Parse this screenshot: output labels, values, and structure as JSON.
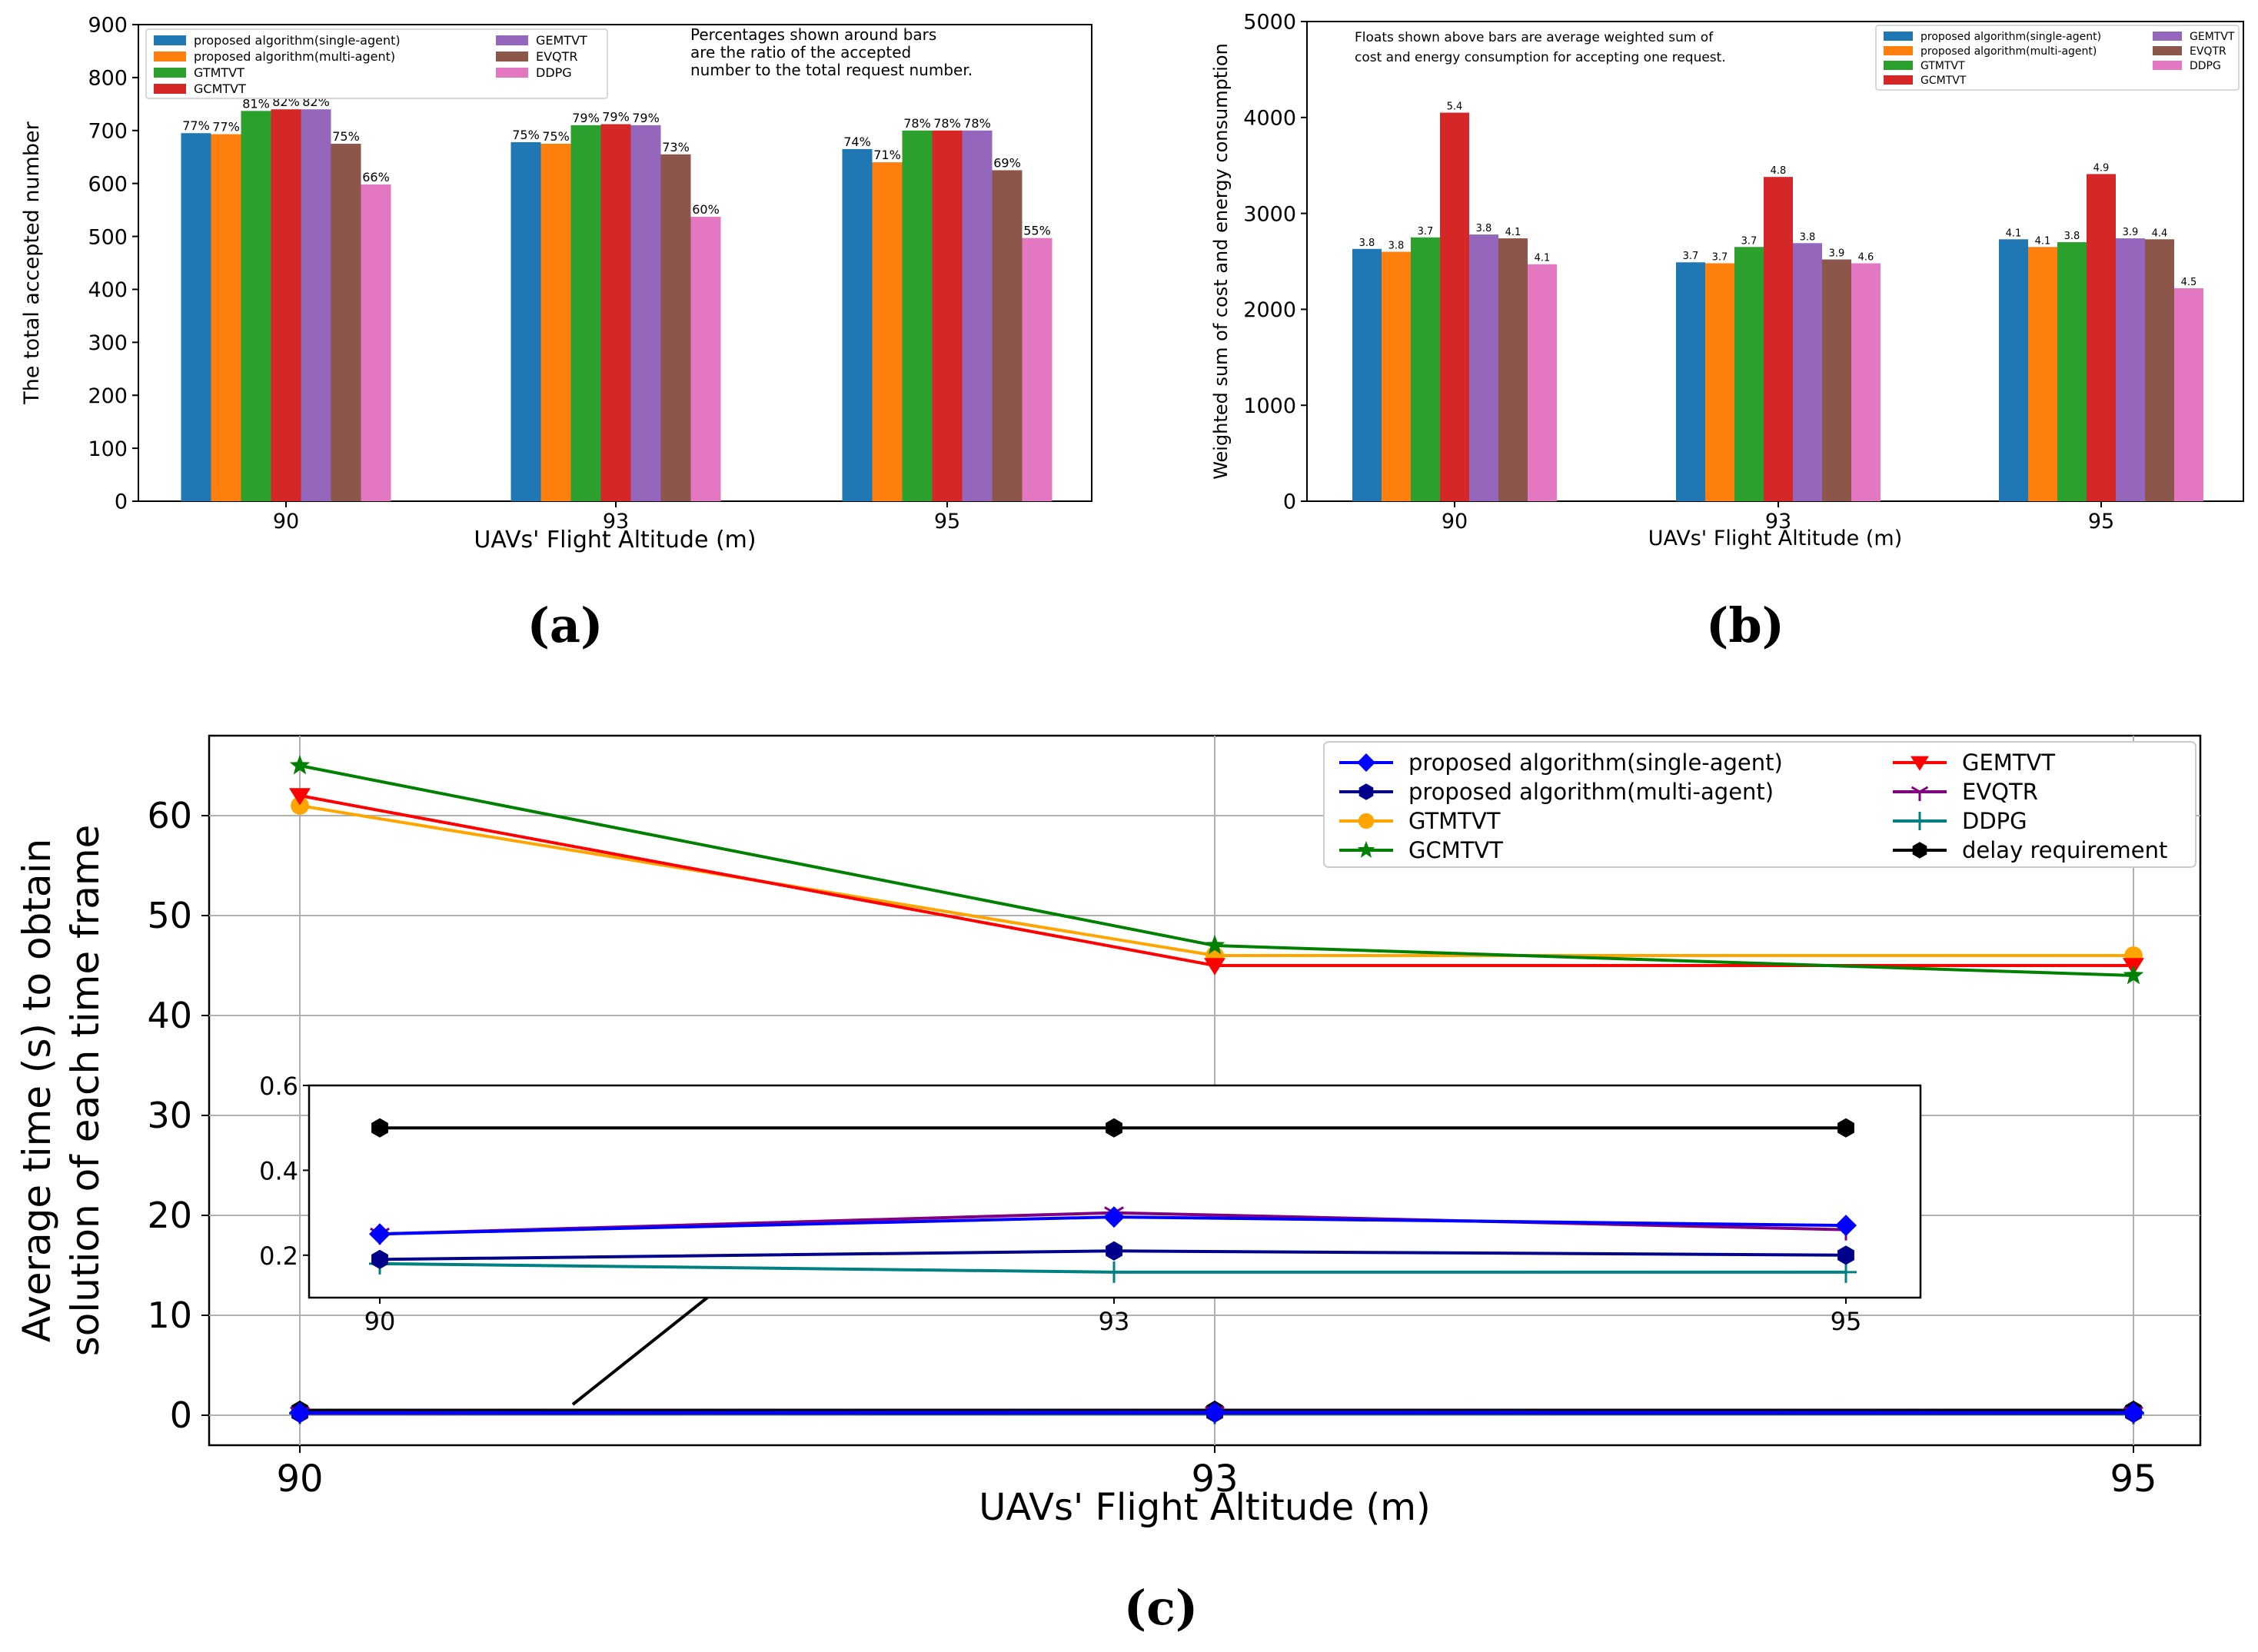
{
  "captions": {
    "a": "(a)",
    "b": "(b)",
    "c": "(c)"
  },
  "colors": {
    "proposed algorithm(single-agent)": "#1f77b4",
    "proposed algorithm(multi-agent)": "#ff7f0e",
    "GTMTVT": "#2ca02c",
    "GCMTVT": "#d62728",
    "GEMTVT": "#9467bd",
    "EVQTR": "#8c564b",
    "DDPG": "#e377c2"
  },
  "chart_data": [
    {
      "id": "a",
      "type": "bar",
      "categories": [
        "90",
        "93",
        "95"
      ],
      "xlabel": "UAVs' Flight Altitude (m)",
      "ylabel": "The total accepted number",
      "ylim": [
        0,
        900
      ],
      "yticks": [
        0,
        100,
        200,
        300,
        400,
        500,
        600,
        700,
        800,
        900
      ],
      "note": [
        "Percentages shown around bars",
        "are the ratio of the accepted",
        "number to the total request number."
      ],
      "legend_position": "upper-left",
      "series": [
        {
          "name": "proposed algorithm(single-agent)",
          "values": [
            695,
            678,
            665
          ],
          "labels": [
            "77%",
            "75%",
            "74%"
          ]
        },
        {
          "name": "proposed algorithm(multi-agent)",
          "values": [
            693,
            675,
            640
          ],
          "labels": [
            "77%",
            "75%",
            "71%"
          ]
        },
        {
          "name": "GTMTVT",
          "values": [
            737,
            710,
            700
          ],
          "labels": [
            "81%",
            "79%",
            "78%"
          ]
        },
        {
          "name": "GCMTVT",
          "values": [
            740,
            712,
            700
          ],
          "labels": [
            "82%",
            "79%",
            "78%"
          ]
        },
        {
          "name": "GEMTVT",
          "values": [
            740,
            710,
            700
          ],
          "labels": [
            "82%",
            "79%",
            "78%"
          ]
        },
        {
          "name": "EVQTR",
          "values": [
            675,
            655,
            625
          ],
          "labels": [
            "75%",
            "73%",
            "69%"
          ]
        },
        {
          "name": "DDPG",
          "values": [
            598,
            537,
            497
          ],
          "labels": [
            "66%",
            "60%",
            "55%"
          ]
        }
      ]
    },
    {
      "id": "b",
      "type": "bar",
      "categories": [
        "90",
        "93",
        "95"
      ],
      "xlabel": "UAVs' Flight Altitude (m)",
      "ylabel": "Weighted sum of cost and energy consumption",
      "ylim": [
        0,
        5000
      ],
      "yticks": [
        0,
        1000,
        2000,
        3000,
        4000,
        5000
      ],
      "note": [
        "Floats shown above bars are average weighted sum of",
        "cost and energy consumption for accepting one request."
      ],
      "legend_position": "upper-right",
      "series": [
        {
          "name": "proposed algorithm(single-agent)",
          "values": [
            2630,
            2490,
            2730
          ],
          "labels": [
            "3.8",
            "3.7",
            "4.1"
          ]
        },
        {
          "name": "proposed algorithm(multi-agent)",
          "values": [
            2600,
            2480,
            2650
          ],
          "labels": [
            "3.8",
            "3.7",
            "4.1"
          ]
        },
        {
          "name": "GTMTVT",
          "values": [
            2750,
            2650,
            2700
          ],
          "labels": [
            "3.7",
            "3.7",
            "3.8"
          ]
        },
        {
          "name": "GCMTVT",
          "values": [
            4050,
            3380,
            3410
          ],
          "labels": [
            "5.4",
            "4.8",
            "4.9"
          ]
        },
        {
          "name": "GEMTVT",
          "values": [
            2780,
            2690,
            2740
          ],
          "labels": [
            "3.8",
            "3.8",
            "3.9"
          ]
        },
        {
          "name": "EVQTR",
          "values": [
            2740,
            2520,
            2730
          ],
          "labels": [
            "4.1",
            "3.9",
            "4.4"
          ]
        },
        {
          "name": "DDPG",
          "values": [
            2470,
            2480,
            2220
          ],
          "labels": [
            "4.1",
            "4.6",
            "4.5"
          ]
        }
      ]
    },
    {
      "id": "c",
      "type": "line",
      "x": [
        "90",
        "93",
        "95"
      ],
      "xlabel": "UAVs' Flight Altitude (m)",
      "ylabel": [
        "Average time (s) to obtain",
        "solution of each time frame"
      ],
      "ylim": [
        -3,
        68
      ],
      "yticks": [
        0,
        10,
        20,
        30,
        40,
        50,
        60
      ],
      "grid": true,
      "legend_position": "upper-right",
      "series": [
        {
          "name": "proposed algorithm(single-agent)",
          "color": "#0000ff",
          "marker": "diamond",
          "values": [
            0.25,
            0.29,
            0.27
          ]
        },
        {
          "name": "proposed algorithm(multi-agent)",
          "color": "#00008b",
          "marker": "hexagon",
          "values": [
            0.19,
            0.21,
            0.2
          ]
        },
        {
          "name": "GTMTVT",
          "color": "#ffa500",
          "marker": "circle",
          "values": [
            61,
            46,
            46
          ]
        },
        {
          "name": "GCMTVT",
          "color": "#008000",
          "marker": "star",
          "values": [
            65,
            47,
            44
          ]
        },
        {
          "name": "GEMTVT",
          "color": "#ff0000",
          "marker": "triangle-down",
          "values": [
            62,
            45,
            45
          ]
        },
        {
          "name": "EVQTR",
          "color": "#800080",
          "marker": "tri-down",
          "values": [
            0.25,
            0.3,
            0.26
          ]
        },
        {
          "name": "DDPG",
          "color": "#008080",
          "marker": "plus",
          "values": [
            0.18,
            0.16,
            0.16
          ]
        },
        {
          "name": "delay requirement",
          "color": "#000000",
          "marker": "hexagon",
          "values": [
            0.5,
            0.5,
            0.5
          ]
        }
      ],
      "inset": {
        "ylim": [
          0.1,
          0.6
        ],
        "yticks": [
          0.2,
          0.4,
          0.6
        ],
        "series": [
          "proposed algorithm(single-agent)",
          "proposed algorithm(multi-agent)",
          "EVQTR",
          "DDPG",
          "delay requirement"
        ]
      }
    }
  ]
}
